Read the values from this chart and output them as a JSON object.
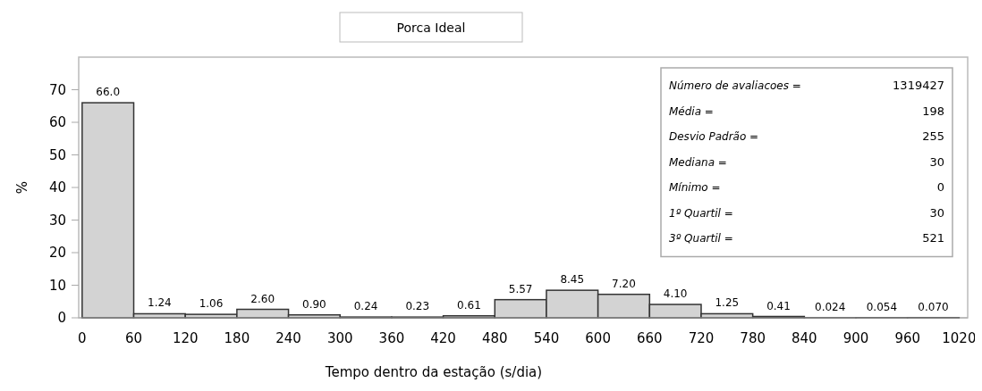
{
  "chart_data": {
    "type": "histogram",
    "title": "Porca Ideal",
    "xlabel": "Tempo dentro da estação (s/dia)",
    "ylabel": "%",
    "bins": [
      0,
      60,
      120,
      180,
      240,
      300,
      360,
      420,
      480,
      540,
      600,
      660,
      720,
      780,
      840,
      900,
      960,
      1020
    ],
    "values": [
      66.0,
      1.24,
      1.06,
      2.6,
      0.9,
      0.24,
      0.23,
      0.61,
      5.57,
      8.45,
      7.2,
      4.1,
      1.25,
      0.41,
      0.024,
      0.054,
      0.07
    ],
    "value_labels": [
      "66.0",
      "1.24",
      "1.06",
      "2.60",
      "0.90",
      "0.24",
      "0.23",
      "0.61",
      "5.57",
      "8.45",
      "7.20",
      "4.10",
      "1.25",
      "0.41",
      "0.024",
      "0.054",
      "0.070"
    ],
    "color": "#d3d3d3",
    "xlim": [
      -4,
      1030
    ],
    "xticks": [
      0,
      60,
      120,
      180,
      240,
      300,
      360,
      420,
      480,
      540,
      600,
      660,
      720,
      780,
      840,
      900,
      960,
      1020
    ],
    "ylim": [
      0,
      80
    ],
    "yticks": [
      0,
      10,
      20,
      30,
      40,
      50,
      60,
      70
    ],
    "annotations": [
      "Número de avaliacoes = 1319427",
      "Média = 198",
      "Desvio Padrão = 255",
      "Mediana = 30",
      "Mínimo = 0",
      "1º Quartil = 30",
      "3º Quartil = 521"
    ]
  }
}
